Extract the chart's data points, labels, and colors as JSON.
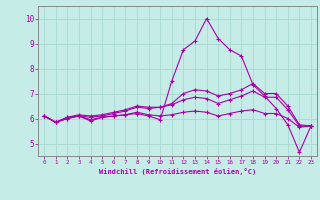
{
  "xlabel": "Windchill (Refroidissement éolien,°C)",
  "background_color": "#c5ece6",
  "grid_color": "#a8d8d0",
  "line_color": "#aa00aa",
  "xlim": [
    -0.5,
    23.5
  ],
  "ylim": [
    4.5,
    10.5
  ],
  "xtick_labels": [
    "0",
    "1",
    "2",
    "3",
    "4",
    "5",
    "6",
    "7",
    "8",
    "9",
    "10",
    "11",
    "12",
    "13",
    "14",
    "15",
    "16",
    "17",
    "18",
    "19",
    "20",
    "21",
    "22",
    "23"
  ],
  "ytick_labels": [
    "5",
    "6",
    "7",
    "8",
    "9",
    "10"
  ],
  "series": [
    [
      6.1,
      5.85,
      6.0,
      6.1,
      5.9,
      6.05,
      6.1,
      6.15,
      6.2,
      6.1,
      5.95,
      7.5,
      8.75,
      9.1,
      10.0,
      9.2,
      8.75,
      8.5,
      7.35,
      6.9,
      6.4,
      5.75,
      4.65,
      5.7
    ],
    [
      6.1,
      5.85,
      6.05,
      6.1,
      6.05,
      6.1,
      6.2,
      6.3,
      6.45,
      6.4,
      6.45,
      6.6,
      7.0,
      7.15,
      7.1,
      6.9,
      7.0,
      7.15,
      7.4,
      7.0,
      7.0,
      6.5,
      5.75,
      5.7
    ],
    [
      6.1,
      5.85,
      6.05,
      6.15,
      6.1,
      6.15,
      6.25,
      6.35,
      6.5,
      6.45,
      6.45,
      6.55,
      6.75,
      6.85,
      6.8,
      6.6,
      6.75,
      6.9,
      7.1,
      6.85,
      6.85,
      6.35,
      5.7,
      5.7
    ],
    [
      6.1,
      5.85,
      6.0,
      6.1,
      5.95,
      6.05,
      6.1,
      6.15,
      6.25,
      6.15,
      6.1,
      6.15,
      6.25,
      6.3,
      6.25,
      6.1,
      6.2,
      6.3,
      6.35,
      6.2,
      6.2,
      6.0,
      5.65,
      5.7
    ]
  ]
}
